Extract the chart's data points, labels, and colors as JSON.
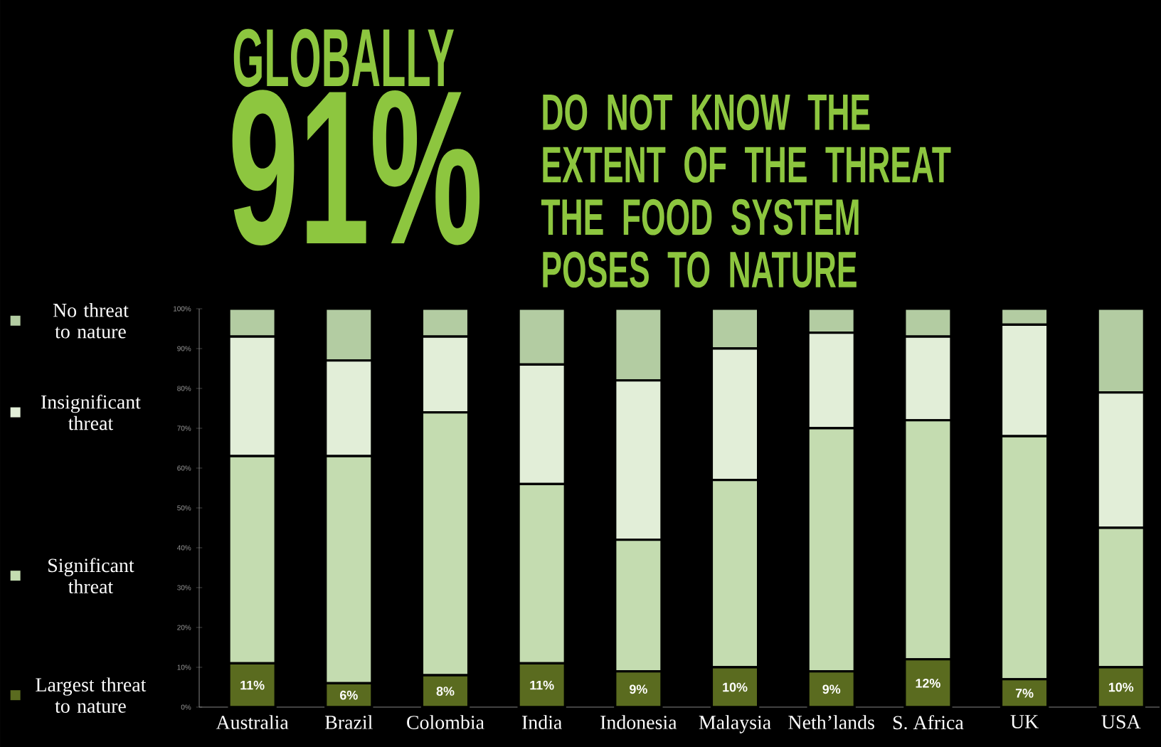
{
  "chart_data": {
    "type": "bar",
    "stacked": true,
    "title": "GLOBALLY",
    "subtitle": "DO NOT KNOW THE EXTENT OF THE THREAT THE FOOD SYSTEM POSES TO NATURE",
    "annotations": [
      "91%"
    ],
    "categories": [
      "Australia",
      "Brazil",
      "Colombia",
      "India",
      "Indonesia",
      "Malaysia",
      "Neth’lands",
      "S. Africa",
      "UK",
      "USA"
    ],
    "series": [
      {
        "name": "Largest threat to nature",
        "color": "#5a6b1f",
        "values": [
          11,
          6,
          8,
          11,
          9,
          10,
          9,
          12,
          7,
          10
        ],
        "value_labels": [
          "11%",
          "6%",
          "8%",
          "11%",
          "9%",
          "10%",
          "9%",
          "12%",
          "7%",
          "10%"
        ]
      },
      {
        "name": "Significant threat",
        "color": "#c4dcb0",
        "values": [
          52,
          57,
          66,
          45,
          33,
          47,
          61,
          60,
          61,
          35
        ]
      },
      {
        "name": "Insignificant threat",
        "color": "#e2eed8",
        "values": [
          30,
          24,
          19,
          30,
          40,
          33,
          24,
          21,
          28,
          34
        ]
      },
      {
        "name": "No threat to nature",
        "color": "#b3cca2",
        "values": [
          7,
          13,
          7,
          14,
          18,
          10,
          6,
          7,
          4,
          21
        ]
      }
    ],
    "ylim": [
      0,
      100
    ],
    "yticks": [
      {
        "value": 0,
        "label": "0%"
      },
      {
        "value": 10,
        "label": "10%"
      },
      {
        "value": 20,
        "label": "20%"
      },
      {
        "value": 30,
        "label": "30%"
      },
      {
        "value": 40,
        "label": "40%"
      },
      {
        "value": 50,
        "label": "50%"
      },
      {
        "value": 60,
        "label": "60%"
      },
      {
        "value": 70,
        "label": "70%"
      },
      {
        "value": 80,
        "label": "80%"
      },
      {
        "value": 90,
        "label": "90%"
      },
      {
        "value": 100,
        "label": "100%"
      }
    ],
    "legend": "left"
  }
}
